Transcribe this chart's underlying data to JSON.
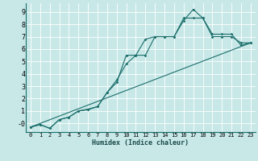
{
  "background_color": "#c8e8e8",
  "grid_color": "#ffffff",
  "line_color": "#1a6e6a",
  "xlabel": "Humidex (Indice chaleur)",
  "xlim": [
    -0.5,
    23.5
  ],
  "ylim": [
    -0.7,
    9.7
  ],
  "xtick_values": [
    0,
    1,
    2,
    3,
    4,
    5,
    6,
    7,
    8,
    9,
    10,
    11,
    12,
    13,
    14,
    15,
    16,
    17,
    18,
    19,
    20,
    21,
    22,
    23
  ],
  "ytick_values": [
    0,
    1,
    2,
    3,
    4,
    5,
    6,
    7,
    8,
    9
  ],
  "ytick_labels": [
    "-0",
    "1",
    "2",
    "3",
    "4",
    "5",
    "6",
    "7",
    "8",
    "9"
  ],
  "line1_x": [
    0,
    1,
    2,
    3,
    4,
    5,
    6,
    7,
    8,
    9,
    10,
    11,
    12,
    13,
    14,
    15,
    16,
    17,
    18,
    19,
    20,
    21,
    22,
    23
  ],
  "line1_y": [
    -0.3,
    -0.1,
    -0.4,
    0.3,
    0.5,
    1.0,
    1.1,
    1.35,
    2.5,
    3.3,
    5.5,
    5.5,
    6.8,
    7.0,
    7.0,
    7.0,
    8.5,
    8.5,
    8.5,
    7.0,
    7.0,
    7.0,
    6.5,
    6.5
  ],
  "line2_x": [
    0,
    1,
    2,
    3,
    4,
    5,
    6,
    7,
    8,
    9,
    10,
    11,
    12,
    13,
    14,
    15,
    16,
    17,
    18,
    19,
    20,
    21,
    22,
    23
  ],
  "line2_y": [
    -0.3,
    -0.1,
    -0.4,
    0.3,
    0.5,
    1.0,
    1.15,
    1.35,
    2.5,
    3.5,
    4.8,
    5.5,
    5.5,
    7.0,
    7.0,
    7.0,
    8.3,
    9.2,
    8.5,
    7.2,
    7.2,
    7.2,
    6.3,
    6.5
  ],
  "line3_x": [
    0,
    23
  ],
  "line3_y": [
    -0.3,
    6.5
  ],
  "marker_size": 1.8,
  "line_width": 0.8,
  "tick_fontsize": 5,
  "xlabel_fontsize": 6
}
